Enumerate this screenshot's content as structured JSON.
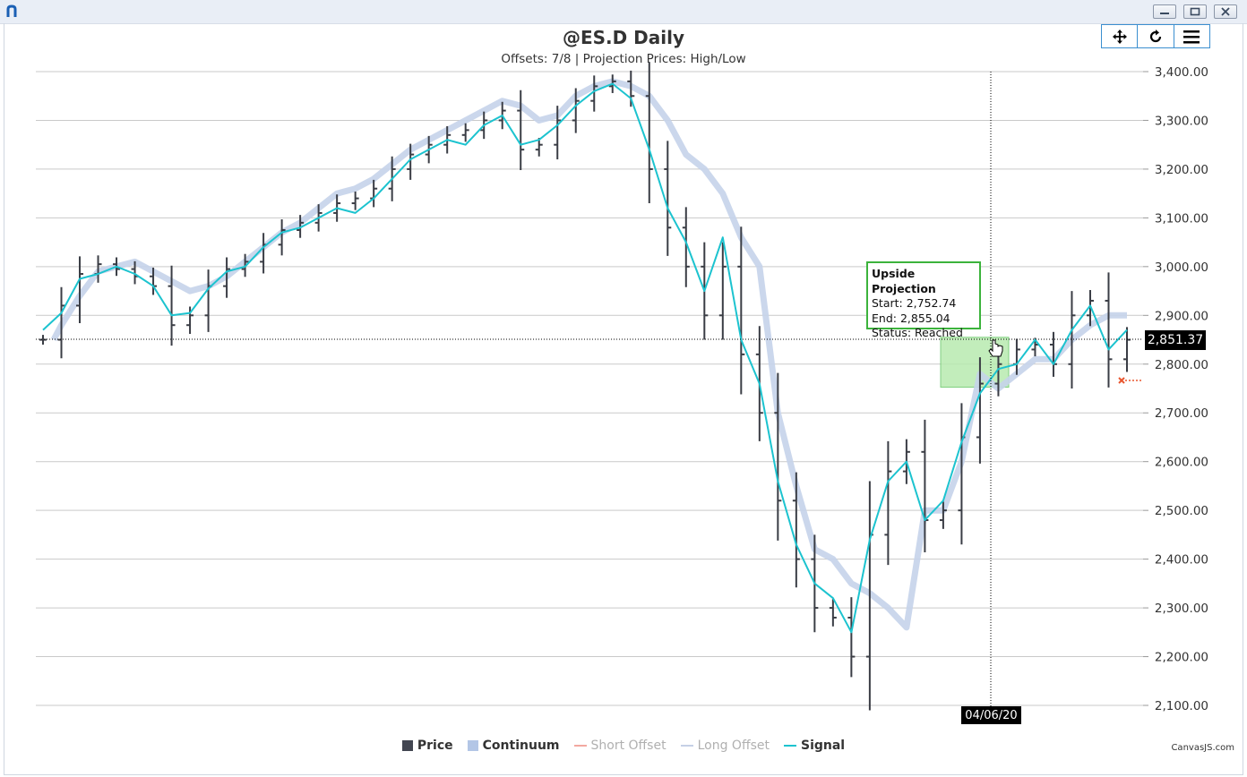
{
  "window": {
    "app_icon": "app-logo-icon",
    "controls": [
      "minimize-icon",
      "restore-icon",
      "close-icon"
    ]
  },
  "toolbar": {
    "icons": [
      "pan-icon",
      "reset-icon",
      "menu-icon"
    ]
  },
  "chart_data": {
    "type": "ohlc-line",
    "title": "@ES.D Daily",
    "subtitle": "Offsets: 7/8 | Projection Prices: High/Low",
    "yaxis": {
      "position": "right",
      "ylim": [
        2100,
        3400
      ],
      "ticks": [
        "3,400.00",
        "3,300.00",
        "3,200.00",
        "3,100.00",
        "3,000.00",
        "2,900.00",
        "2,800.00",
        "2,700.00",
        "2,600.00",
        "2,500.00",
        "2,400.00",
        "2,300.00",
        "2,200.00",
        "2,100.00"
      ],
      "grid": true
    },
    "crosshair": {
      "price": "2,851.37",
      "date": "04/06/20"
    },
    "tooltip": {
      "title": "Upside Projection",
      "start": "Start: 2,752.74",
      "end": "End: 2,855.04",
      "status": "Status: Reached"
    },
    "legend": {
      "placement": "bottom",
      "items": [
        {
          "name": "Price",
          "color": "#424651",
          "style": "box",
          "muted": false
        },
        {
          "name": "Continuum",
          "color": "#b3c6e6",
          "style": "box",
          "muted": false
        },
        {
          "name": "Short Offset",
          "color": "#f2a8a0",
          "style": "line",
          "muted": true
        },
        {
          "name": "Long Offset",
          "color": "#c5d0e6",
          "style": "line",
          "muted": true
        },
        {
          "name": "Signal",
          "color": "#1cc3cf",
          "style": "line",
          "muted": false
        }
      ]
    },
    "series": [
      {
        "name": "Signal",
        "values": [
          2870,
          2905,
          2975,
          2985,
          3000,
          2985,
          2960,
          2900,
          2905,
          2955,
          2990,
          3000,
          3040,
          3070,
          3080,
          3100,
          3120,
          3110,
          3140,
          3180,
          3220,
          3240,
          3260,
          3250,
          3290,
          3310,
          3250,
          3260,
          3290,
          3330,
          3360,
          3375,
          3345,
          3240,
          3120,
          3050,
          2950,
          3060,
          2850,
          2760,
          2560,
          2430,
          2350,
          2320,
          2250,
          2440,
          2560,
          2600,
          2480,
          2520,
          2640,
          2740,
          2790,
          2800,
          2850,
          2800,
          2870,
          2920,
          2830,
          2870
        ]
      },
      {
        "name": "Continuum",
        "values": [
          2850,
          2880,
          2940,
          2990,
          3000,
          3010,
          2990,
          2970,
          2950,
          2960,
          2980,
          3010,
          3040,
          3070,
          3090,
          3120,
          3150,
          3160,
          3180,
          3210,
          3240,
          3260,
          3280,
          3300,
          3320,
          3340,
          3330,
          3300,
          3310,
          3350,
          3370,
          3380,
          3370,
          3350,
          3300,
          3230,
          3200,
          3150,
          3060,
          3000,
          2700,
          2550,
          2420,
          2400,
          2350,
          2330,
          2300,
          2260,
          2500,
          2500,
          2600,
          2780,
          2750,
          2780,
          2810,
          2810,
          2850,
          2880,
          2900,
          2900
        ]
      },
      {
        "name": "Price",
        "values": [
          2850,
          2920,
          2985,
          3005,
          2995,
          2980,
          2960,
          2880,
          2900,
          2960,
          2995,
          3010,
          3045,
          3075,
          3090,
          3110,
          3130,
          3140,
          3160,
          3200,
          3230,
          3250,
          3270,
          3280,
          3300,
          3320,
          3240,
          3250,
          3300,
          3340,
          3370,
          3380,
          3350,
          3200,
          3080,
          3000,
          2900,
          3000,
          2820,
          2700,
          2520,
          2400,
          2300,
          2280,
          2200,
          2450,
          2580,
          2620,
          2480,
          2500,
          2650,
          2760,
          2800,
          2830,
          2840,
          2800,
          2900,
          2930,
          2810,
          2850
        ]
      }
    ],
    "projections": [
      {
        "label": "Upside Projection",
        "start": 2752.74,
        "end": 2855.04,
        "status": "Reached"
      }
    ],
    "credit": "CanvasJS.com"
  }
}
